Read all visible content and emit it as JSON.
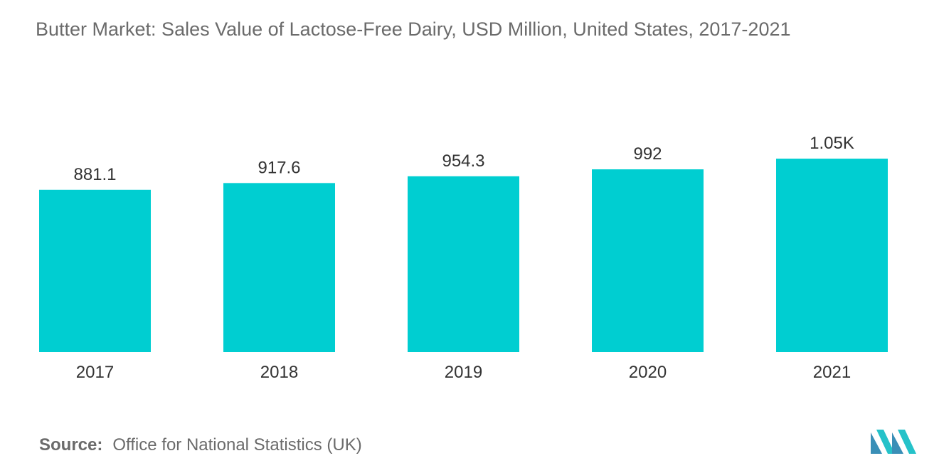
{
  "title": "Butter Market: Sales Value of Lactose-Free Dairy, USD Million, United States, 2017-2021",
  "chart_data": {
    "type": "bar",
    "title": "Butter Market: Sales Value of Lactose-Free Dairy, USD Million, United States, 2017-2021",
    "categories": [
      "2017",
      "2018",
      "2019",
      "2020",
      "2021"
    ],
    "values": [
      881.1,
      917.6,
      954.3,
      992,
      1050
    ],
    "value_labels": [
      "881.1",
      "917.6",
      "954.3",
      "992",
      "1.05K"
    ],
    "xlabel": "",
    "ylabel": "",
    "ylim": [
      0,
      1200
    ],
    "grid": false,
    "legend": "none",
    "bar_color": "#00ced1"
  },
  "source": {
    "label": "Source:",
    "text": "Office for National Statistics (UK)"
  },
  "logo": {
    "icon": "mordor-intelligence-logo-icon",
    "colors": [
      "#3a8fb7",
      "#25c2c9"
    ]
  }
}
